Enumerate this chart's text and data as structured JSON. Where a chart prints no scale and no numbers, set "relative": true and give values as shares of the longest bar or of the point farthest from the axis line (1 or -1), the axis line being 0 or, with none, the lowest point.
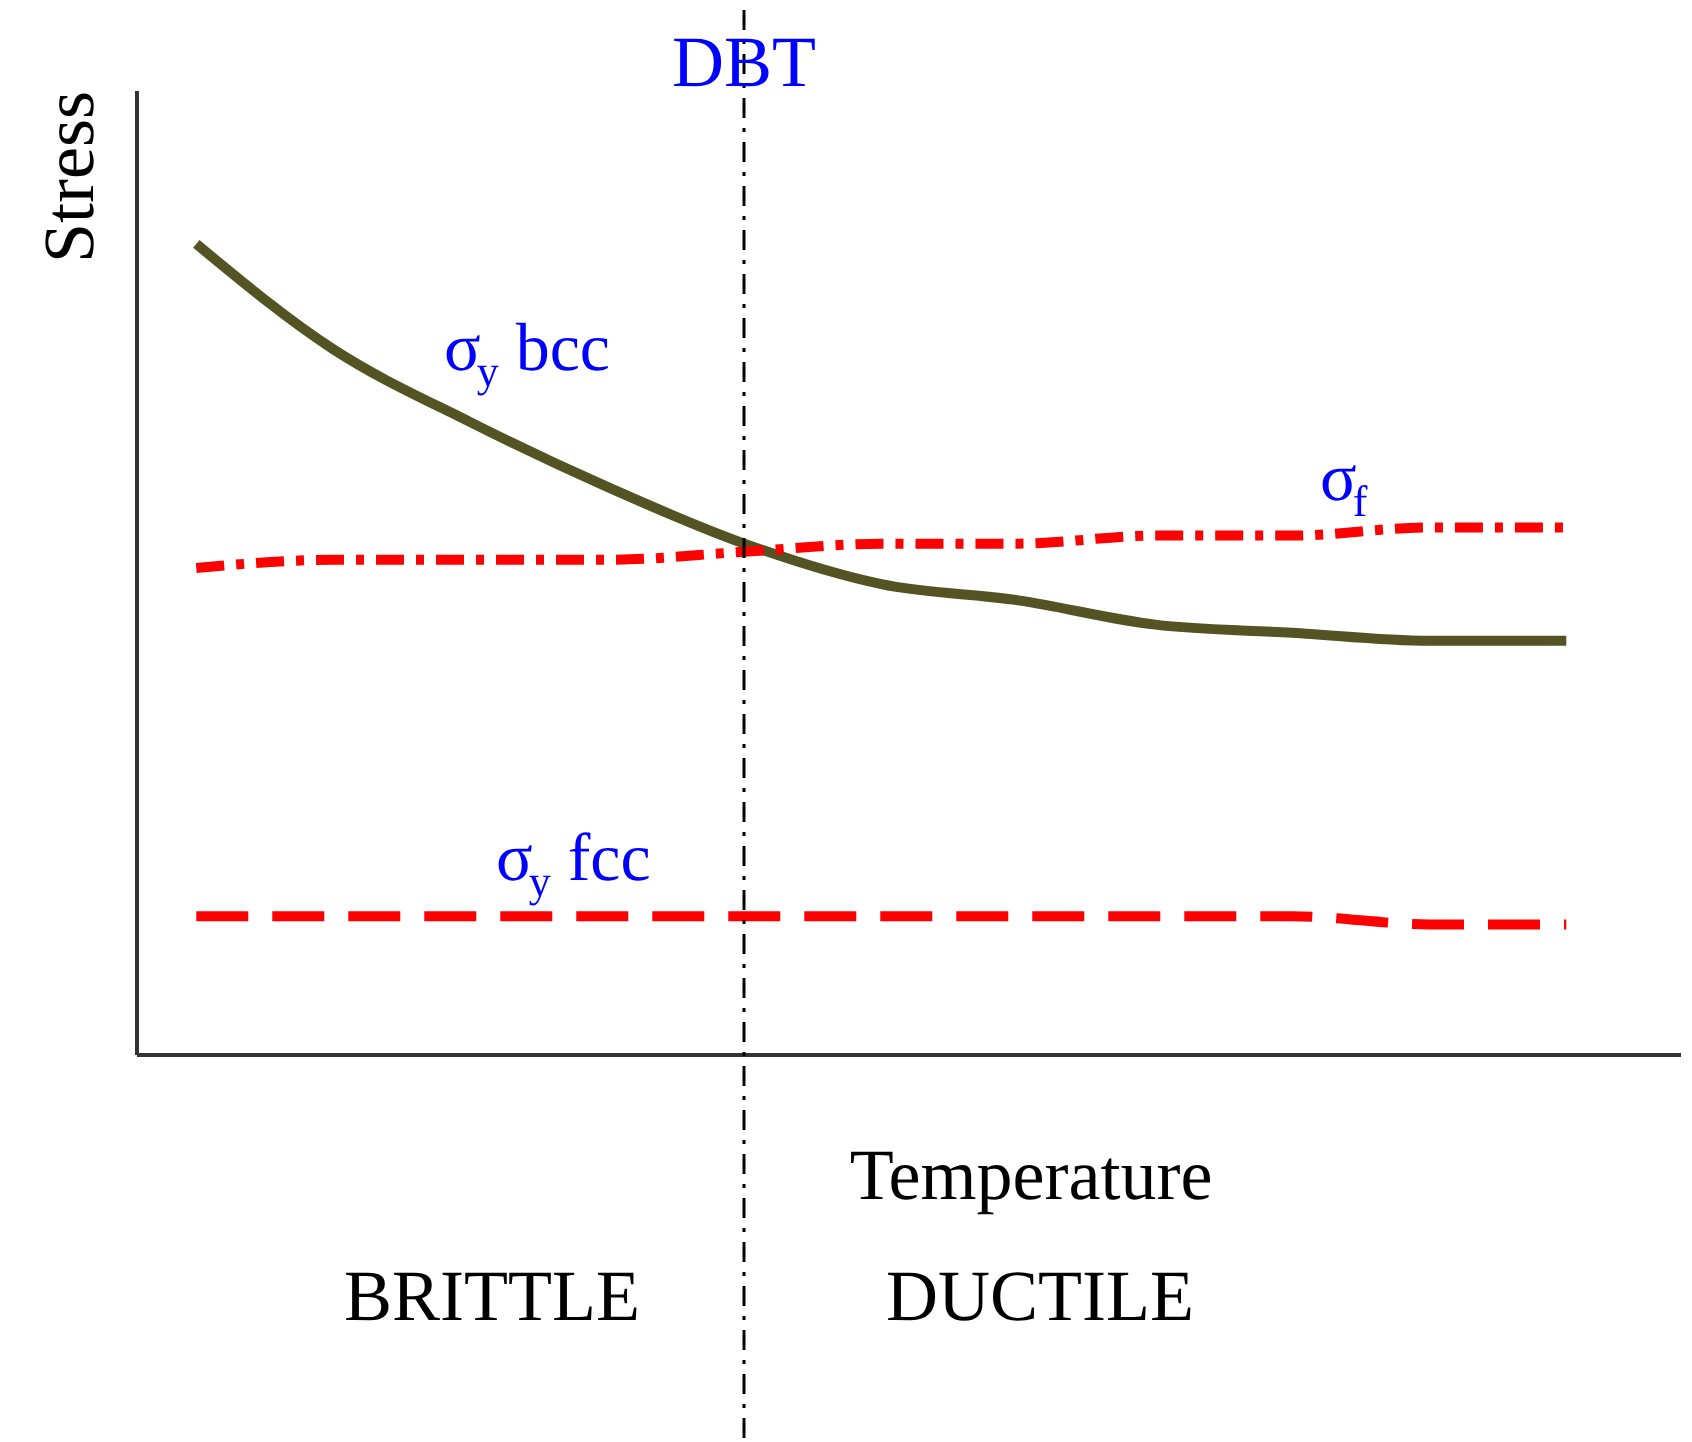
{
  "chart_data": {
    "type": "line",
    "relative": true,
    "xlabel": "Temperature",
    "ylabel": "Stress",
    "categories": [
      null,
      null,
      null,
      null,
      null,
      null,
      null,
      null,
      null,
      null,
      null
    ],
    "series": [
      {
        "name": "σ$_{y}$ bcc",
        "color": "#545323",
        "line_style": "solid",
        "values": [
          1.0,
          0.87,
          0.78,
          0.7,
          0.63,
          0.58,
          0.56,
          0.53,
          0.52,
          0.51,
          0.51
        ]
      },
      {
        "name": "σ$_{f}$",
        "color": "#ff0000",
        "line_style": "dashdot",
        "values": [
          0.6,
          0.61,
          0.61,
          0.61,
          0.62,
          0.63,
          0.63,
          0.64,
          0.64,
          0.65,
          0.65
        ]
      },
      {
        "name": "σ$_{y}$ fcc",
        "color": "#ff0000",
        "line_style": "dashed",
        "values": [
          0.17,
          0.17,
          0.17,
          0.17,
          0.17,
          0.17,
          0.17,
          0.17,
          0.17,
          0.16,
          0.16
        ]
      }
    ],
    "annotations": [
      "DBT",
      "BRITTLE",
      "DUCTILE"
    ],
    "grid": false,
    "tick_labels": false
  }
}
